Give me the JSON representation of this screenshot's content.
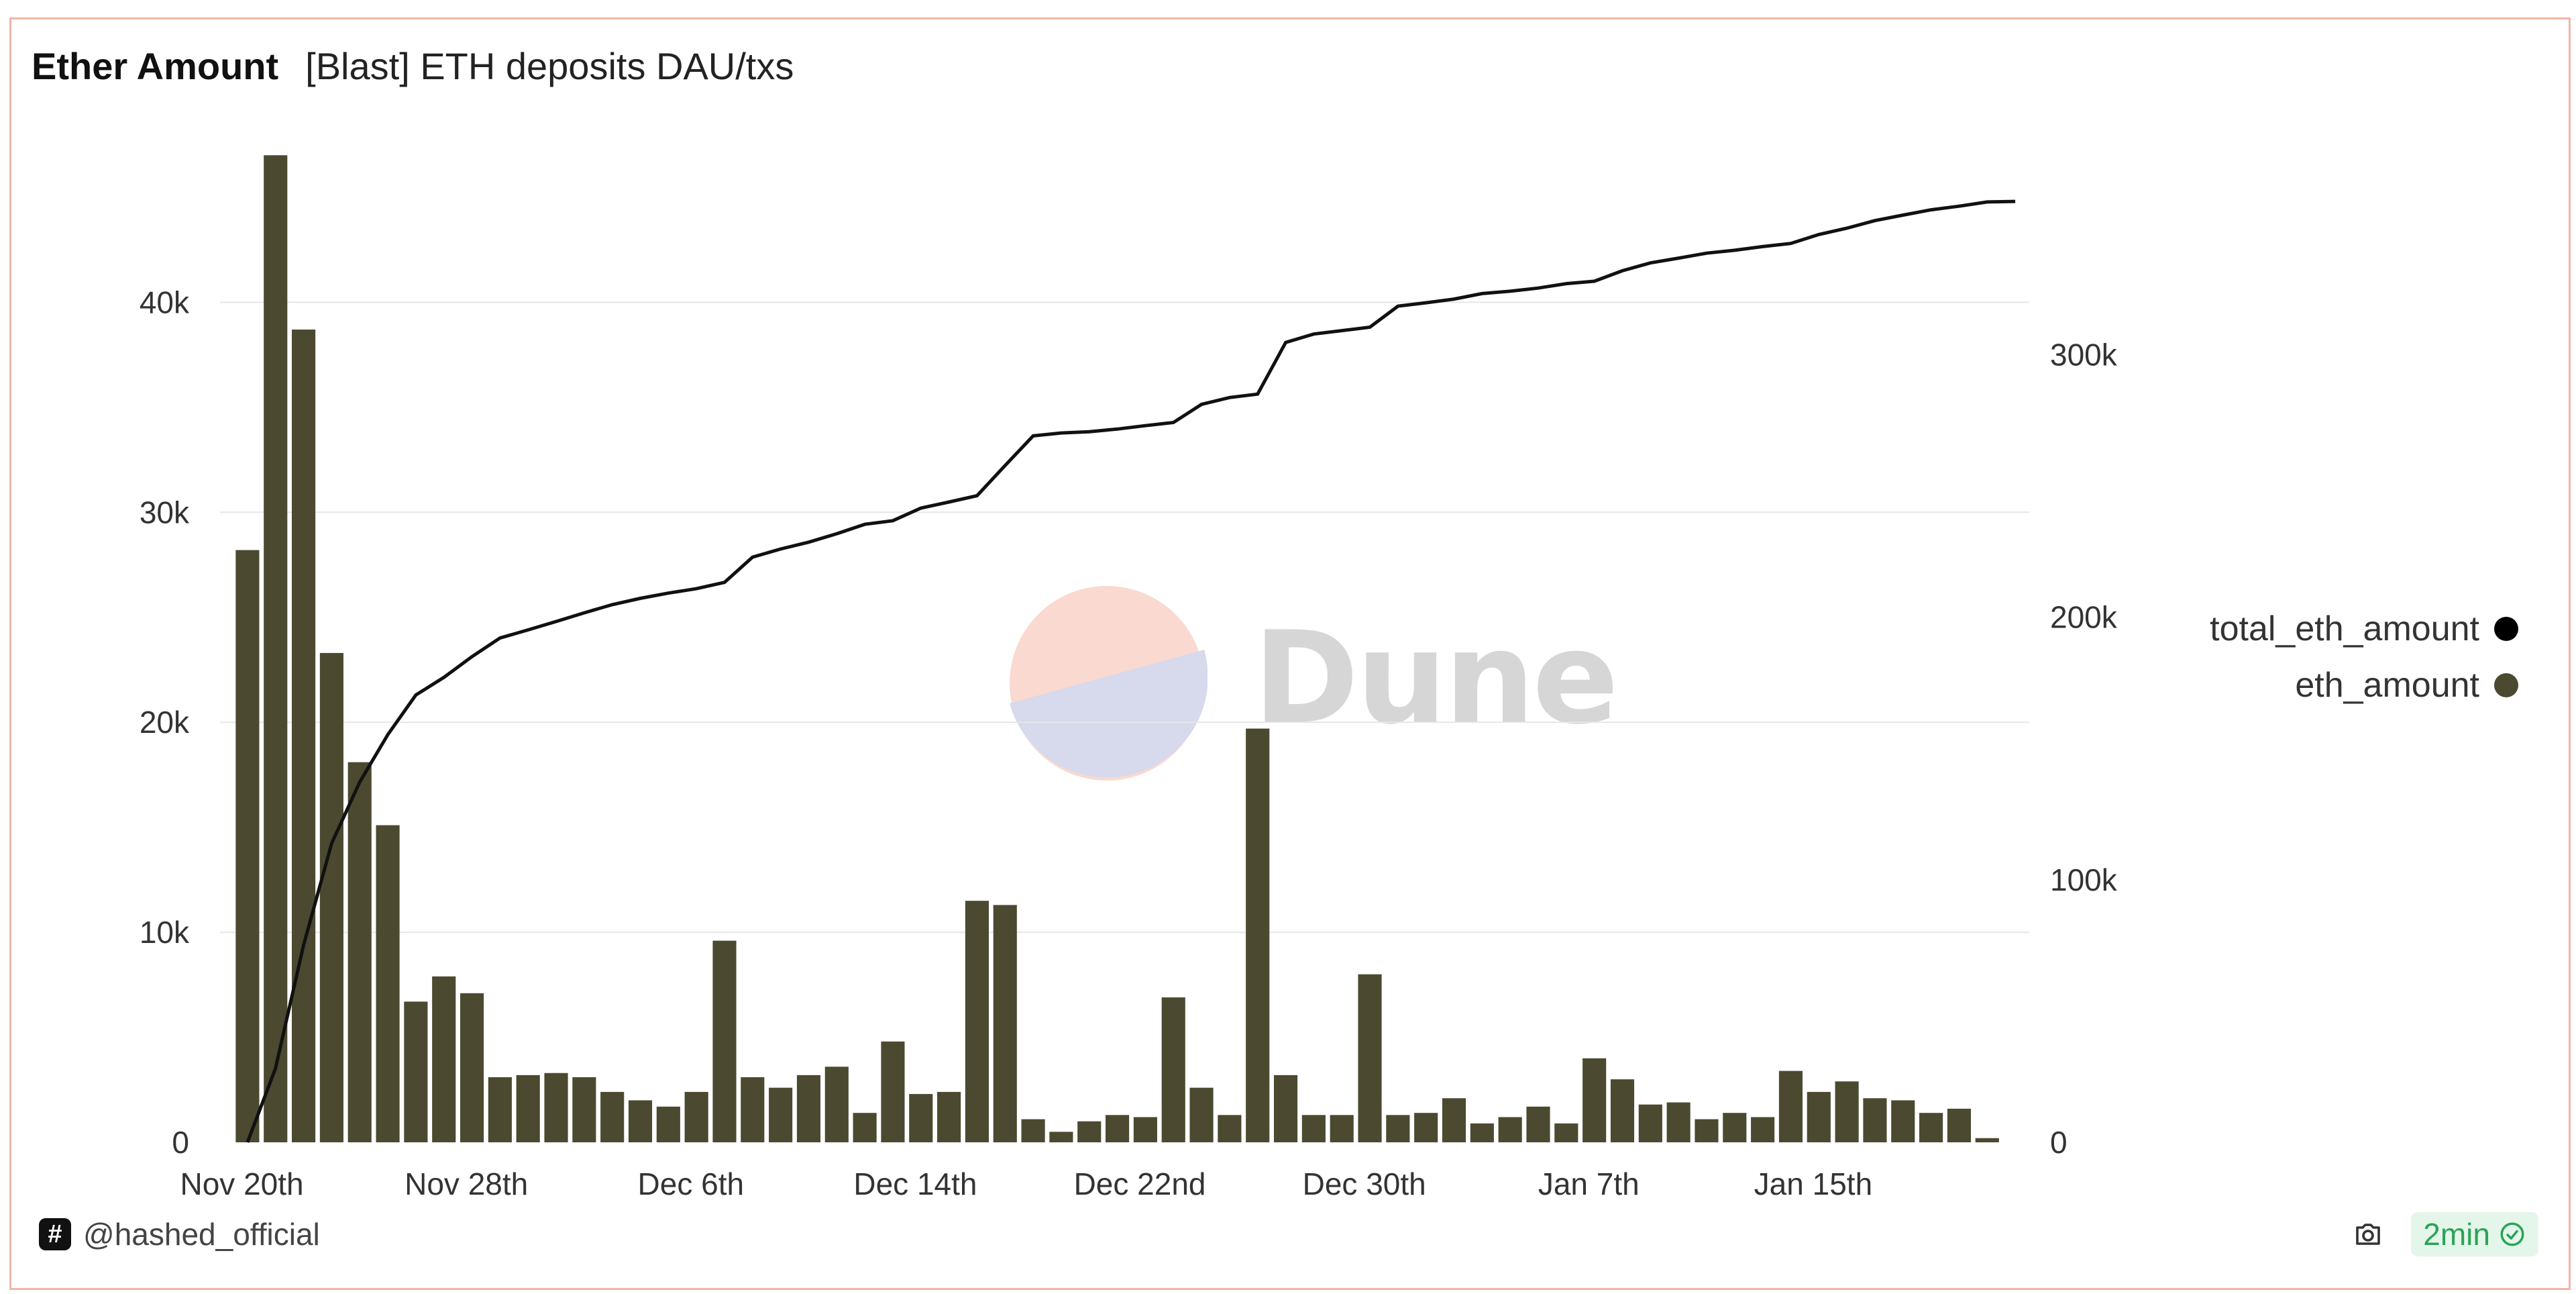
{
  "header": {
    "title": "Ether Amount",
    "subtitle": "[Blast] ETH deposits DAU/txs"
  },
  "watermark": {
    "text": "Dune"
  },
  "footer": {
    "author": "@hashed_official",
    "refresh": "2min"
  },
  "legend": [
    {
      "label": "total_eth_amount",
      "color": "#000000"
    },
    {
      "label": "eth_amount",
      "color": "#4b4a30"
    }
  ],
  "chart_data": {
    "type": "bar+line",
    "categories": [
      "Nov 20th",
      "Nov 21st",
      "Nov 22nd",
      "Nov 23rd",
      "Nov 24th",
      "Nov 25th",
      "Nov 26th",
      "Nov 27th",
      "Nov 28th",
      "Nov 29th",
      "Nov 30th",
      "Dec 1st",
      "Dec 2nd",
      "Dec 3rd",
      "Dec 4th",
      "Dec 5th",
      "Dec 6th",
      "Dec 7th",
      "Dec 8th",
      "Dec 9th",
      "Dec 10th",
      "Dec 11th",
      "Dec 12th",
      "Dec 13th",
      "Dec 14th",
      "Dec 15th",
      "Dec 16th",
      "Dec 17th",
      "Dec 18th",
      "Dec 19th",
      "Dec 20th",
      "Dec 21st",
      "Dec 22nd",
      "Dec 23rd",
      "Dec 24th",
      "Dec 25th",
      "Dec 26th",
      "Dec 27th",
      "Dec 28th",
      "Dec 29th",
      "Dec 30th",
      "Dec 31st",
      "Jan 1st",
      "Jan 2nd",
      "Jan 3rd",
      "Jan 4th",
      "Jan 5th",
      "Jan 6th",
      "Jan 7th",
      "Jan 8th",
      "Jan 9th",
      "Jan 10th",
      "Jan 11th",
      "Jan 12th",
      "Jan 13th",
      "Jan 14th",
      "Jan 15th",
      "Jan 16th",
      "Jan 17th",
      "Jan 18th",
      "Jan 19th",
      "Jan 20th",
      "Jan 21st",
      "Jan 22nd"
    ],
    "x_tick_labels": [
      "Nov 20th",
      "Nov 28th",
      "Dec 6th",
      "Dec 14th",
      "Dec 22nd",
      "Dec 30th",
      "Jan 7th",
      "Jan 15th"
    ],
    "x_tick_indices": [
      0,
      8,
      16,
      24,
      32,
      40,
      48,
      56
    ],
    "series": [
      {
        "name": "eth_amount",
        "type": "bar",
        "axis": "left",
        "color": "#4b4a30",
        "values": [
          28200,
          47000,
          38700,
          23300,
          18100,
          15100,
          6700,
          7900,
          7100,
          3100,
          3200,
          3300,
          3100,
          2400,
          2000,
          1700,
          2400,
          9600,
          3100,
          2600,
          3200,
          3600,
          1400,
          4800,
          2300,
          2400,
          11500,
          11300,
          1100,
          500,
          1000,
          1300,
          1200,
          6900,
          2600,
          1300,
          19700,
          3200,
          1300,
          1300,
          8000,
          1300,
          1400,
          2100,
          900,
          1200,
          1700,
          900,
          4000,
          3000,
          1800,
          1900,
          1100,
          1400,
          1200,
          3400,
          2400,
          2900,
          2100,
          2000,
          1400,
          1600,
          200,
          0
        ]
      },
      {
        "name": "total_eth_amount",
        "type": "line",
        "axis": "right",
        "color": "#000000",
        "values": [
          0,
          28200,
          75200,
          113900,
          137200,
          155300,
          170400,
          177100,
          185000,
          192100,
          195200,
          198400,
          201700,
          204800,
          207200,
          209200,
          210900,
          213300,
          222900,
          226000,
          228600,
          231800,
          235400,
          236800,
          241600,
          243900,
          246300,
          257800,
          269100,
          270200,
          270700,
          271700,
          273000,
          274200,
          281100,
          283700,
          285000,
          304700,
          307900,
          309200,
          310500,
          318500,
          319800,
          321200,
          323300,
          324200,
          325400,
          327100,
          328000,
          332000,
          335000,
          336800,
          338700,
          339800,
          341200,
          342400,
          345800,
          348200,
          351100,
          353200,
          355200,
          356600,
          358200,
          358400
        ]
      }
    ],
    "y_left": {
      "min": 0,
      "max": 48000,
      "ticks": [
        0,
        10000,
        20000,
        30000,
        40000
      ],
      "tick_labels": [
        "0",
        "10k",
        "20k",
        "30k",
        "40k"
      ]
    },
    "y_right": {
      "min": 0,
      "max": 384000,
      "ticks": [
        0,
        100000,
        200000,
        300000
      ],
      "tick_labels": [
        "0",
        "100k",
        "200k",
        "300k"
      ]
    },
    "grid": true,
    "legend_position": "right"
  }
}
